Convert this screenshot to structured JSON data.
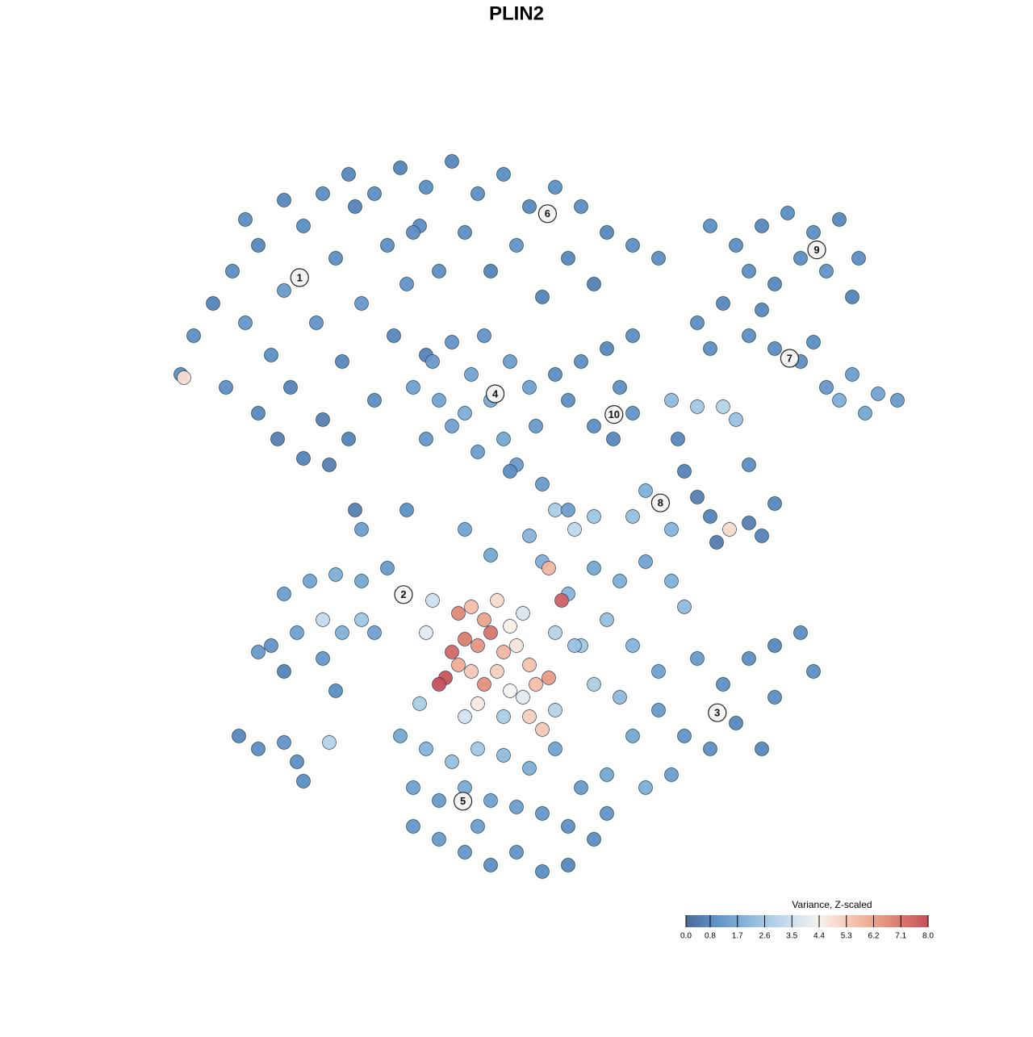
{
  "chart_data": {
    "type": "scatter",
    "title": "PLIN2",
    "xlim": [
      -60,
      60
    ],
    "ylim": [
      -60,
      60
    ],
    "x": [
      -50,
      -47,
      -44,
      -42,
      -40,
      -38,
      -36,
      -35,
      -33,
      -31,
      -30,
      -28,
      -27,
      -25,
      -24,
      -22,
      -20,
      -19,
      -17,
      -15,
      -14,
      -12,
      -37,
      -33,
      -29,
      -45,
      -52,
      -51.5,
      -40,
      -26,
      -42,
      -36,
      -30,
      -26,
      -22,
      -18,
      -14,
      -10,
      -6,
      -2,
      2,
      6,
      10,
      14,
      18,
      22,
      -8,
      0,
      8,
      -16,
      -4,
      12,
      4,
      30,
      34,
      38,
      42,
      46,
      50,
      53,
      52,
      48,
      44,
      36,
      40,
      28,
      32,
      36,
      40,
      44,
      48,
      52,
      56,
      59,
      54,
      46,
      38,
      30,
      50,
      -16,
      -13,
      -10,
      -7,
      -4,
      -1,
      2,
      3,
      -2,
      -6,
      -10,
      -14,
      -12,
      -8,
      -5,
      0,
      6,
      10,
      14,
      18,
      16,
      12,
      15,
      18,
      8,
      24,
      28,
      32,
      34,
      25,
      26,
      28,
      30,
      31,
      36,
      38,
      40,
      33,
      36,
      20,
      18,
      24,
      6,
      9,
      12,
      2,
      4,
      -4,
      -36,
      -32,
      -28,
      -24,
      -20,
      -34,
      -30,
      -27,
      -24,
      -38,
      -36,
      -30,
      -28,
      -22,
      -40,
      -43,
      -40,
      -36,
      -34,
      -29,
      -33,
      8,
      12,
      16,
      20,
      24,
      26,
      14,
      10,
      18,
      22,
      28,
      32,
      36,
      40,
      44,
      46,
      40,
      34,
      30,
      26,
      22,
      18,
      38,
      16,
      12,
      24,
      20,
      -18,
      -14,
      -10,
      -6,
      -2,
      2,
      6,
      -16,
      -12,
      -8,
      -4,
      0,
      4,
      8,
      12,
      14,
      -12,
      -8,
      -4,
      0,
      4,
      8,
      -16,
      10,
      14,
      -6,
      6,
      -2,
      -25,
      -17,
      -8,
      -1,
      4,
      8,
      -24,
      -9,
      -7,
      -5,
      -3,
      -1,
      1,
      -8,
      -6,
      -4,
      -2,
      0,
      2,
      -10,
      -11,
      -12,
      -9,
      -7,
      -5,
      -3,
      -1,
      1,
      3,
      5,
      7,
      5,
      -13,
      -14,
      -6,
      -8,
      2,
      4,
      -15,
      6,
      9
    ],
    "y": [
      28,
      33,
      38,
      30,
      42,
      25,
      35,
      20,
      45,
      30,
      15,
      40,
      24,
      48,
      33,
      18,
      42,
      28,
      36,
      45,
      25,
      38,
      12,
      9,
      8,
      20,
      22,
      21.5,
      16,
      12,
      46,
      49,
      50,
      53,
      50,
      54,
      51,
      55,
      50,
      53,
      48,
      51,
      48,
      44,
      42,
      40,
      44,
      42,
      40,
      44,
      38,
      36,
      34,
      45,
      42,
      45,
      47,
      44,
      46,
      40,
      34,
      38,
      40,
      38,
      36,
      30,
      33,
      28,
      26,
      24,
      20,
      22,
      19,
      18,
      16,
      27,
      32,
      26,
      18,
      20,
      24,
      27,
      22,
      18,
      24,
      20,
      14,
      12,
      10,
      14,
      12,
      18,
      16,
      28,
      8,
      22,
      24,
      26,
      28,
      20,
      14,
      12,
      16,
      18,
      18,
      17,
      17,
      15,
      12,
      7,
      3,
      0,
      -4,
      -1,
      -3,
      2,
      -2,
      8,
      4,
      0,
      -2,
      1,
      -2,
      0,
      -3,
      -7,
      -6,
      -12,
      -10,
      -9,
      -10,
      -8,
      -18,
      -16,
      -18,
      -16,
      -20,
      -24,
      -22,
      -27,
      -18,
      -21,
      -34,
      -36,
      -35,
      -38,
      -35,
      -41,
      -12,
      -8,
      -10,
      -7,
      -10,
      -14,
      -16,
      -20,
      -20,
      -24,
      -22,
      -26,
      -22,
      -20,
      -18,
      -24,
      -28,
      -32,
      -36,
      -34,
      -30,
      -34,
      -36,
      -28,
      -26,
      -40,
      -42,
      -34,
      -36,
      -38,
      -36,
      -37,
      -39,
      -36,
      -42,
      -44,
      -42,
      -44,
      -45,
      -46,
      -48,
      -50,
      -46,
      -50,
      -52,
      -54,
      -52,
      -55,
      -54,
      -48,
      -42,
      -40,
      -48,
      -30,
      -31,
      1,
      1,
      -2,
      7,
      5,
      1,
      -2,
      -15,
      -14,
      -16,
      -13,
      -17,
      -15,
      -19,
      -20,
      -18,
      -21,
      -20,
      -23,
      -21,
      -25,
      -26,
      -23,
      -24,
      -26,
      -24,
      -27,
      -28,
      -26,
      -25,
      -13,
      -8,
      -13,
      -18,
      -29,
      -31,
      -31,
      -33,
      -29,
      -18,
      -20
    ],
    "values": [
      0.9,
      0.6,
      0.8,
      1.1,
      0.7,
      0.9,
      1.2,
      0.6,
      0.8,
      1.0,
      0.5,
      0.9,
      0.7,
      0.6,
      1.1,
      0.8,
      0.9,
      0.7,
      1.0,
      0.8,
      0.6,
      0.9,
      0.5,
      0.6,
      0.5,
      0.9,
      0.8,
      4.9,
      0.7,
      0.6,
      0.8,
      0.7,
      0.8,
      0.7,
      0.9,
      0.6,
      0.8,
      0.7,
      0.9,
      0.8,
      0.7,
      0.9,
      0.8,
      0.7,
      0.9,
      0.8,
      0.9,
      1.0,
      0.7,
      0.8,
      0.6,
      0.5,
      0.6,
      0.9,
      0.8,
      0.7,
      0.8,
      0.9,
      0.7,
      0.8,
      0.6,
      1.0,
      0.8,
      0.9,
      0.7,
      0.8,
      0.7,
      0.9,
      0.8,
      0.9,
      1.1,
      1.3,
      1.5,
      1.2,
      1.6,
      0.8,
      0.7,
      0.9,
      1.8,
      1.4,
      1.2,
      1.0,
      1.5,
      1.7,
      1.3,
      1.4,
      1.2,
      1.6,
      1.3,
      1.4,
      1.1,
      1.5,
      1.8,
      1.0,
      1.2,
      0.8,
      0.9,
      0.7,
      0.8,
      0.9,
      0.8,
      0.7,
      1.0,
      0.9,
      2.2,
      2.6,
      3.0,
      2.4,
      0.7,
      0.6,
      0.5,
      0.6,
      0.4,
      0.5,
      0.6,
      0.7,
      5.0,
      0.8,
      1.9,
      2.3,
      2.0,
      2.8,
      3.2,
      2.5,
      2.0,
      1.8,
      1.6,
      1.3,
      1.5,
      1.8,
      1.6,
      1.2,
      1.4,
      3.3,
      1.9,
      2.5,
      1.0,
      0.6,
      1.1,
      0.8,
      1.4,
      1.2,
      0.7,
      0.8,
      1.0,
      0.9,
      3.0,
      0.8,
      2.0,
      1.6,
      1.8,
      1.5,
      1.9,
      2.2,
      2.3,
      2.6,
      2.0,
      1.4,
      1.2,
      0.9,
      0.8,
      0.7,
      0.8,
      0.9,
      0.8,
      0.7,
      0.9,
      1.0,
      1.2,
      1.6,
      0.7,
      2.1,
      2.8,
      1.3,
      1.8,
      1.6,
      2.0,
      2.3,
      2.6,
      2.2,
      1.8,
      1.5,
      1.4,
      1.2,
      1.7,
      1.4,
      1.3,
      1.1,
      0.9,
      0.8,
      1.0,
      1.2,
      1.1,
      0.9,
      1.0,
      0.8,
      0.7,
      1.1,
      1.2,
      1.6,
      1.3,
      3.0,
      2.8,
      0.5,
      0.9,
      1.5,
      0.8,
      1.2,
      1.3,
      1.3,
      6.8,
      5.6,
      6.2,
      5.0,
      4.5,
      3.8,
      7.0,
      6.5,
      7.2,
      5.8,
      4.8,
      5.5,
      7.5,
      7.9,
      8.0,
      6.0,
      5.4,
      6.6,
      5.2,
      4.4,
      4.0,
      5.6,
      6.4,
      7.6,
      5.8,
      3.5,
      4.0,
      4.6,
      3.6,
      5.2,
      5.4,
      2.8,
      3.0,
      2.4
    ],
    "clusters": {
      "labels": [
        "1",
        "6",
        "9",
        "7",
        "4",
        "10",
        "8",
        "2",
        "3",
        "5"
      ],
      "x": [
        -33.6,
        4.8,
        46.5,
        42.3,
        -3.3,
        15.1,
        22.3,
        -17.5,
        31.1,
        -8.3
      ],
      "y": [
        37,
        46.9,
        41.3,
        24.5,
        19,
        15.8,
        2.1,
        -12.1,
        -30.4,
        -44.1
      ]
    },
    "colorbar": {
      "title": "Variance, Z-scaled",
      "lim": [
        0,
        8
      ],
      "ticks": [
        {
          "value": 0,
          "label": "0.0"
        },
        0.8,
        1.7,
        2.6,
        3.5,
        4.4,
        5.3,
        6.2,
        7.1,
        {
          "value": 8,
          "label": "8.0"
        }
      ],
      "colors": [
        "#4a6a96",
        "#5b8cc2",
        "#7aaad4",
        "#a3c8e2",
        "#cde0ee",
        "#f6f2ef",
        "#f7cdb8",
        "#eba48c",
        "#d97a6e",
        "#c64f5a"
      ]
    }
  }
}
